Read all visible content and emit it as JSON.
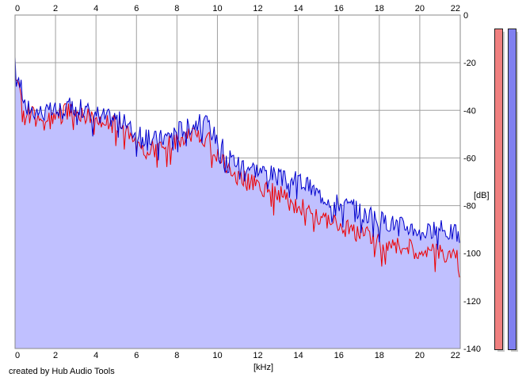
{
  "chart_data": {
    "type": "area",
    "title": "",
    "xlabel": "[kHz]",
    "ylabel": "[dB]",
    "xlim": [
      0,
      22
    ],
    "ylim": [
      -140,
      0
    ],
    "x_ticks": [
      "0",
      "2",
      "4",
      "6",
      "8",
      "10",
      "12",
      "14",
      "16",
      "18",
      "20",
      "22"
    ],
    "y_ticks": [
      "0",
      "-20",
      "-40",
      "-60",
      "-80",
      "-100",
      "-120",
      "-140"
    ],
    "grid": true,
    "series": [
      {
        "color": "#0000cc",
        "fill": "#c0c0ff",
        "x": [
          0,
          0.2,
          0.5,
          1,
          1.5,
          2,
          2.5,
          3,
          3.5,
          4,
          4.5,
          5,
          5.5,
          6,
          6.5,
          7,
          7.5,
          8,
          8.5,
          9,
          9.5,
          10,
          10.5,
          11,
          11.5,
          12,
          12.5,
          13,
          13.5,
          14,
          14.5,
          15,
          15.5,
          16,
          16.5,
          17,
          17.5,
          18,
          18.5,
          19,
          19.5,
          20,
          20.5,
          21,
          21.5,
          22
        ],
        "values": [
          -21,
          -27,
          -38,
          -40,
          -41,
          -40,
          -39,
          -38,
          -40,
          -41,
          -43,
          -43,
          -46,
          -50,
          -52,
          -52,
          -51,
          -48,
          -47,
          -45,
          -46,
          -52,
          -58,
          -62,
          -63,
          -65,
          -66,
          -68,
          -70,
          -69,
          -72,
          -75,
          -77,
          -79,
          -80,
          -82,
          -84,
          -86,
          -87,
          -88,
          -89,
          -90,
          -91,
          -90,
          -91,
          -92
        ]
      },
      {
        "color": "#ee0000",
        "x": [
          0,
          0.2,
          0.5,
          1,
          1.5,
          2,
          2.5,
          3,
          3.5,
          4,
          4.5,
          5,
          5.5,
          6,
          6.5,
          7,
          7.5,
          8,
          8.5,
          9,
          9.5,
          10,
          10.5,
          11,
          11.5,
          12,
          12.5,
          13,
          13.5,
          14,
          14.5,
          15,
          15.5,
          16,
          16.5,
          17,
          17.5,
          18,
          18.5,
          19,
          19.5,
          20,
          20.5,
          21,
          21.5,
          22
        ],
        "values": [
          -22,
          -30,
          -41,
          -43,
          -44,
          -43,
          -41,
          -40,
          -42,
          -43,
          -45,
          -46,
          -50,
          -54,
          -57,
          -56,
          -55,
          -53,
          -51,
          -50,
          -52,
          -58,
          -64,
          -68,
          -70,
          -72,
          -73,
          -75,
          -78,
          -80,
          -82,
          -84,
          -86,
          -88,
          -90,
          -92,
          -93,
          -95,
          -96,
          -97,
          -98,
          -99,
          -99,
          -100,
          -100,
          -101
        ]
      }
    ]
  },
  "meters": {
    "left_color": "#f08080",
    "right_color": "#8080f0"
  },
  "credit": "created by Hub Audio Tools"
}
